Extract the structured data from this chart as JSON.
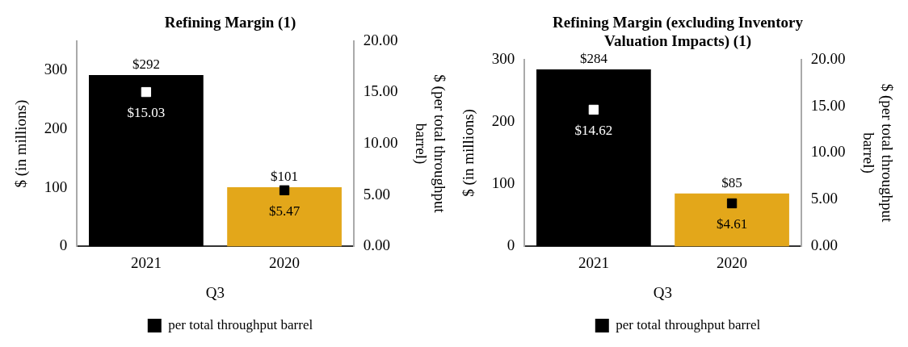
{
  "chart_data": [
    {
      "type": "bar",
      "title": "Refining Margin (1)",
      "xlabel": "Q3",
      "ylabel": "$ (in millions)",
      "y2label": "$ (per total throughput barrel)",
      "categories": [
        "2021",
        "2020"
      ],
      "ylim": [
        0,
        350
      ],
      "yticks": [
        0,
        100,
        200,
        300
      ],
      "y2lim": [
        0,
        20
      ],
      "y2ticks": [
        {
          "value": 0,
          "label": "0.00"
        },
        {
          "value": 5,
          "label": "5.00"
        },
        {
          "value": 10,
          "label": "10.00"
        },
        {
          "value": 15,
          "label": "15.00"
        },
        {
          "value": 20,
          "label": "20.00"
        }
      ],
      "grid": false,
      "legend": "bottom",
      "marker": "square",
      "series": [
        {
          "values": [
            292,
            101
          ],
          "colors": [
            "#000000",
            "#e3a71a"
          ],
          "value_labels": [
            "$292",
            "$101"
          ]
        },
        {
          "type": "scatter",
          "name": "per total throughput barrel",
          "axis": "y2",
          "values": [
            15.03,
            5.47
          ],
          "color": "#000000",
          "colors": [
            "#ffffff",
            "#000000"
          ],
          "value_labels": [
            "$15.03",
            "$5.47"
          ]
        }
      ]
    },
    {
      "type": "bar",
      "title": "Refining Margin (excluding Inventory Valuation Impacts) (1)",
      "xlabel": "Q3",
      "ylabel": "$ (in millions)",
      "y2label": "$ (per total throughput barrel)",
      "categories": [
        "2021",
        "2020"
      ],
      "ylim": [
        0,
        300
      ],
      "yticks": [
        0,
        100,
        200,
        300
      ],
      "y2lim": [
        0,
        20
      ],
      "y2ticks": [
        {
          "value": 0,
          "label": "0.00"
        },
        {
          "value": 5,
          "label": "5.00"
        },
        {
          "value": 10,
          "label": "10.00"
        },
        {
          "value": 15,
          "label": "15.00"
        },
        {
          "value": 20,
          "label": "20.00"
        }
      ],
      "grid": false,
      "legend": "bottom",
      "marker": "square",
      "series": [
        {
          "values": [
            284,
            85
          ],
          "colors": [
            "#000000",
            "#e3a71a"
          ],
          "value_labels": [
            "$284",
            "$85"
          ]
        },
        {
          "type": "scatter",
          "name": "per total throughput barrel",
          "axis": "y2",
          "values": [
            14.62,
            4.61
          ],
          "color": "#000000",
          "colors": [
            "#ffffff",
            "#000000"
          ],
          "value_labels": [
            "$14.62",
            "$4.61"
          ]
        }
      ]
    }
  ]
}
